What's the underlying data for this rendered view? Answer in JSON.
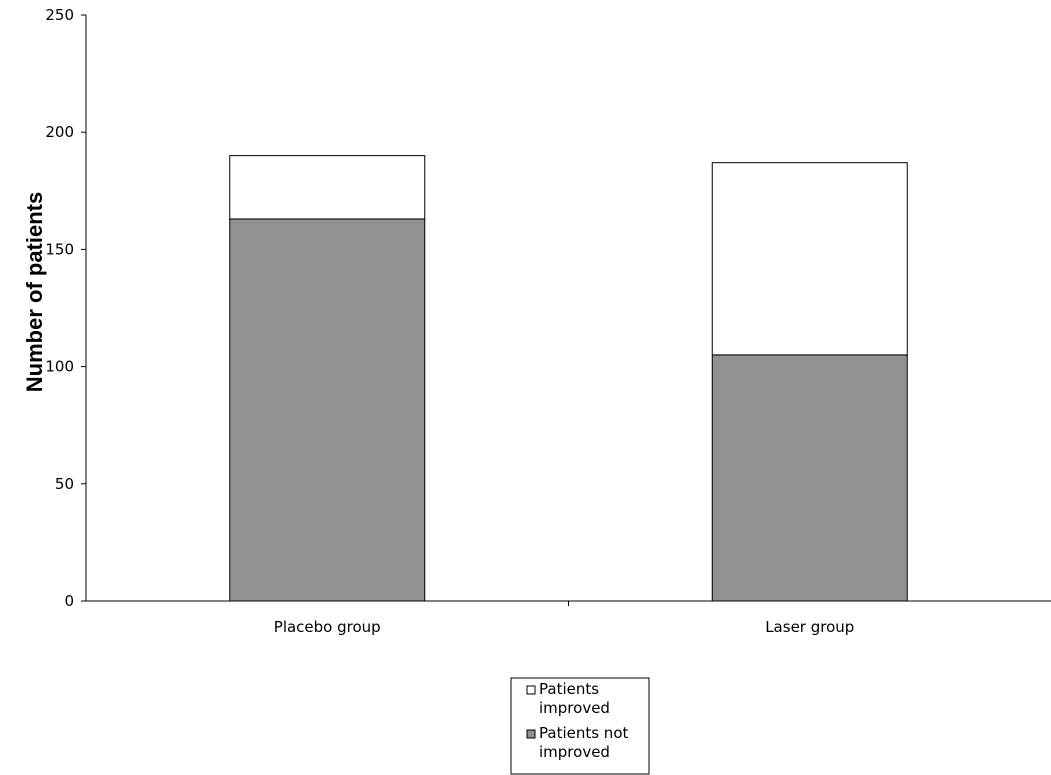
{
  "chart_data": {
    "type": "bar",
    "stacked": true,
    "categories": [
      "Placebo group",
      "Laser group"
    ],
    "series": [
      {
        "name": "Patients not improved",
        "values": [
          163,
          105
        ],
        "color": "#919191"
      },
      {
        "name": "Patients improved",
        "values": [
          27,
          82
        ],
        "color": "#ffffff"
      }
    ],
    "title": "",
    "xlabel": "",
    "ylabel": "Number of patients",
    "ylim": [
      0,
      250
    ],
    "yticks": [
      0,
      50,
      100,
      150,
      200,
      250
    ],
    "grid": false,
    "legend": {
      "placement": "bottom-center",
      "entries": [
        {
          "line1": "Patients",
          "line2": "improved",
          "color": "#ffffff"
        },
        {
          "line1": "Patients not",
          "line2": "improved",
          "color": "#919191"
        }
      ]
    }
  }
}
